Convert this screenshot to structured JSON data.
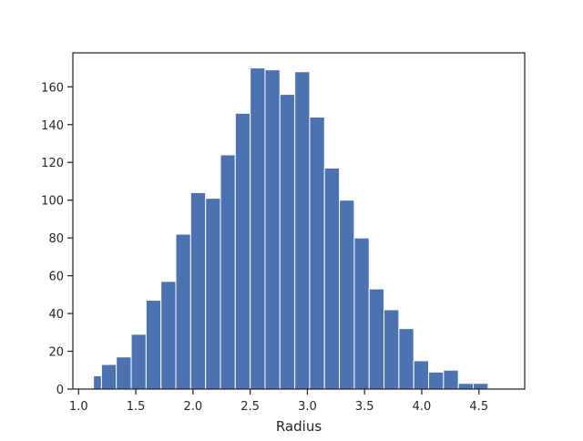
{
  "chart_data": {
    "type": "bar",
    "subtype": "histogram",
    "xlabel": "Radius",
    "ylabel": "",
    "title": "",
    "xlim": [
      0.95,
      4.9
    ],
    "ylim": [
      0,
      178
    ],
    "xticks": [
      1.0,
      1.5,
      2.0,
      2.5,
      3.0,
      3.5,
      4.0,
      4.5
    ],
    "xtick_labels": [
      "1.0",
      "1.5",
      "2.0",
      "2.5",
      "3.0",
      "3.5",
      "4.0",
      "4.5"
    ],
    "yticks": [
      0,
      20,
      40,
      60,
      80,
      100,
      120,
      140,
      160
    ],
    "ytick_labels": [
      "0",
      "20",
      "40",
      "60",
      "80",
      "100",
      "120",
      "140",
      "160"
    ],
    "bins": [
      {
        "x0": 1.13,
        "x1": 1.2,
        "count": 7
      },
      {
        "x0": 1.2,
        "x1": 1.33,
        "count": 13
      },
      {
        "x0": 1.33,
        "x1": 1.46,
        "count": 17
      },
      {
        "x0": 1.46,
        "x1": 1.59,
        "count": 29
      },
      {
        "x0": 1.59,
        "x1": 1.72,
        "count": 47
      },
      {
        "x0": 1.72,
        "x1": 1.85,
        "count": 57
      },
      {
        "x0": 1.85,
        "x1": 1.98,
        "count": 82
      },
      {
        "x0": 1.98,
        "x1": 2.11,
        "count": 104
      },
      {
        "x0": 2.11,
        "x1": 2.24,
        "count": 101
      },
      {
        "x0": 2.24,
        "x1": 2.37,
        "count": 124
      },
      {
        "x0": 2.37,
        "x1": 2.5,
        "count": 146
      },
      {
        "x0": 2.5,
        "x1": 2.63,
        "count": 170
      },
      {
        "x0": 2.63,
        "x1": 2.76,
        "count": 169
      },
      {
        "x0": 2.76,
        "x1": 2.89,
        "count": 156
      },
      {
        "x0": 2.89,
        "x1": 3.02,
        "count": 168
      },
      {
        "x0": 3.02,
        "x1": 3.15,
        "count": 144
      },
      {
        "x0": 3.15,
        "x1": 3.28,
        "count": 117
      },
      {
        "x0": 3.28,
        "x1": 3.41,
        "count": 100
      },
      {
        "x0": 3.41,
        "x1": 3.54,
        "count": 80
      },
      {
        "x0": 3.54,
        "x1": 3.67,
        "count": 53
      },
      {
        "x0": 3.67,
        "x1": 3.8,
        "count": 42
      },
      {
        "x0": 3.8,
        "x1": 3.93,
        "count": 32
      },
      {
        "x0": 3.93,
        "x1": 4.06,
        "count": 15
      },
      {
        "x0": 4.06,
        "x1": 4.19,
        "count": 9
      },
      {
        "x0": 4.19,
        "x1": 4.32,
        "count": 10
      },
      {
        "x0": 4.32,
        "x1": 4.45,
        "count": 3
      },
      {
        "x0": 4.45,
        "x1": 4.58,
        "count": 3
      }
    ],
    "grid": false,
    "legend": "none",
    "colors": {
      "bar_fill": "#4c72b0",
      "bar_edge": "#ffffff",
      "axes": "#262626",
      "background": "#ffffff"
    }
  }
}
